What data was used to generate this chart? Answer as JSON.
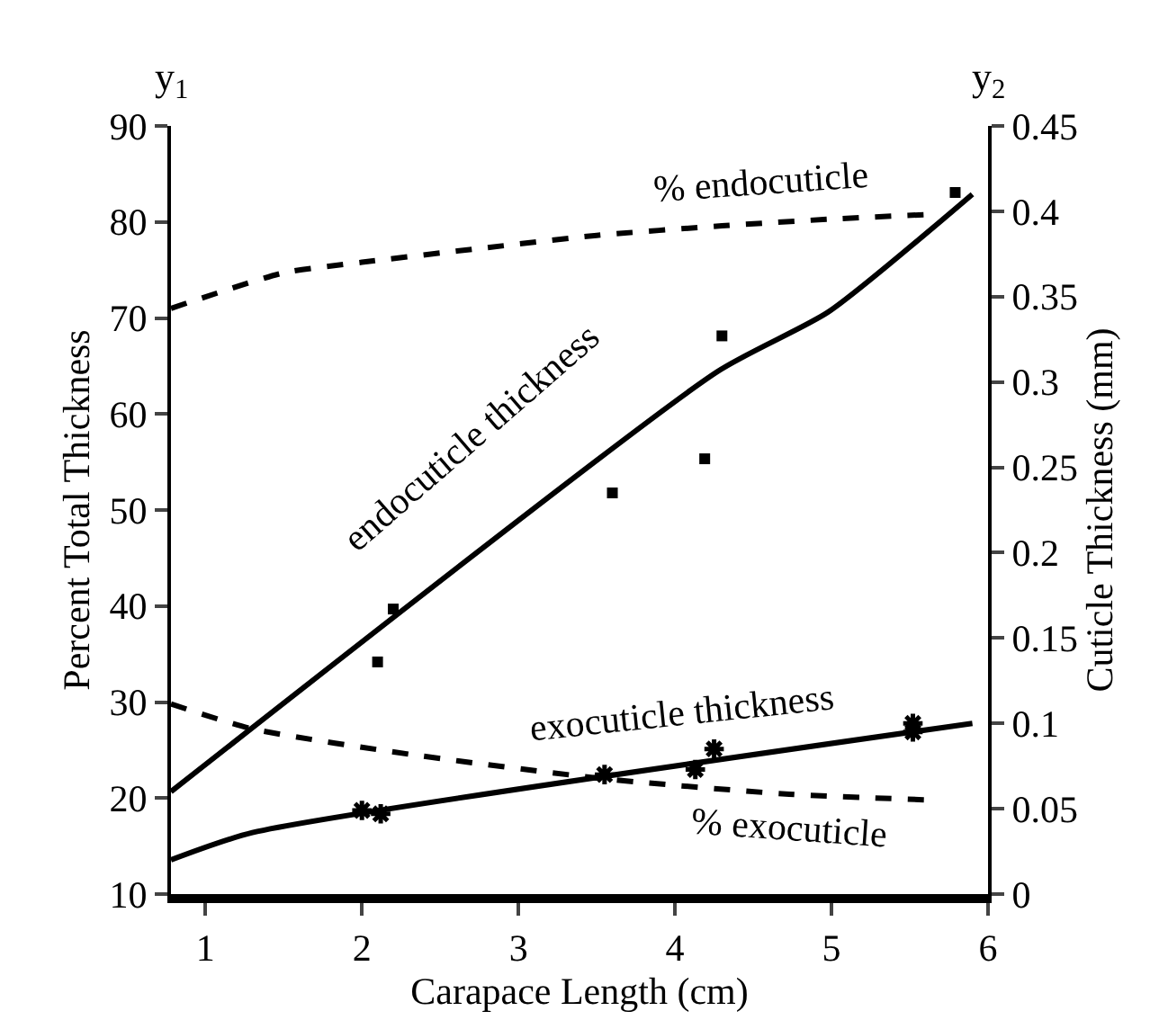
{
  "chart_data": {
    "type": "line",
    "xlabel": "Carapace Length (cm)",
    "ylabel": "Percent Total Thickness",
    "y2label": "Cuticle Thickness (mm)",
    "xlim": [
      0.78,
      6
    ],
    "xticks": [
      1,
      2,
      3,
      4,
      5,
      6
    ],
    "ylim": [
      10,
      90
    ],
    "yticks": [
      10,
      20,
      30,
      40,
      50,
      60,
      70,
      80,
      90
    ],
    "y2lim": [
      0,
      0.45
    ],
    "y2ticks": [
      0,
      0.05,
      0.1,
      0.15,
      0.2,
      0.25,
      0.3,
      0.35,
      0.4,
      0.45
    ],
    "series": [
      {
        "axis": "y",
        "line_style": "dashed",
        "marker": "none",
        "color": "#000000",
        "x": [
          0.78,
          1.5,
          2.0,
          2.73,
          3.5,
          4.3,
          5.0,
          5.65
        ],
        "values": [
          71,
          74.7,
          75.8,
          77.2,
          78.6,
          79.6,
          80.3,
          80.8
        ]
      },
      {
        "axis": "y",
        "line_style": "dashed",
        "marker": "none",
        "color": "#000000",
        "x": [
          0.78,
          1.3,
          2.33,
          3.55,
          4.73,
          5.63
        ],
        "values": [
          29.8,
          27.2,
          24.5,
          22,
          20.4,
          19.8
        ]
      },
      {
        "axis": "y2",
        "line_style": "solid",
        "marker": "none",
        "color": "#000000",
        "x": [
          0.78,
          4.27,
          4.98,
          5.9
        ],
        "values": [
          0.06,
          0.306,
          0.341,
          0.41
        ]
      },
      {
        "axis": "y2",
        "line_style": "solid",
        "marker": "none",
        "color": "#000000",
        "x": [
          0.78,
          1.3,
          5.9
        ],
        "values": [
          0.02,
          0.036,
          0.1
        ]
      },
      {
        "type": "scatter",
        "axis": "y2",
        "marker": "square",
        "color": "#000000",
        "x": [
          2.1,
          2.2,
          3.6,
          4.19,
          4.3,
          5.79
        ],
        "values": [
          0.136,
          0.167,
          0.235,
          0.255,
          0.327,
          0.411
        ]
      },
      {
        "type": "scatter",
        "axis": "y2",
        "marker": "cross",
        "color": "#000000",
        "x": [
          2.0,
          2.12,
          3.55,
          4.13,
          4.25,
          5.52,
          5.52
        ],
        "values": [
          0.049,
          0.047,
          0.07,
          0.073,
          0.085,
          0.1,
          0.095
        ]
      }
    ],
    "annotations": [
      "% endocuticle",
      "endocuticle thickness",
      "exocuticle thickness",
      "% exocuticle",
      "y$_{1}$",
      "y$_{2}$"
    ]
  }
}
